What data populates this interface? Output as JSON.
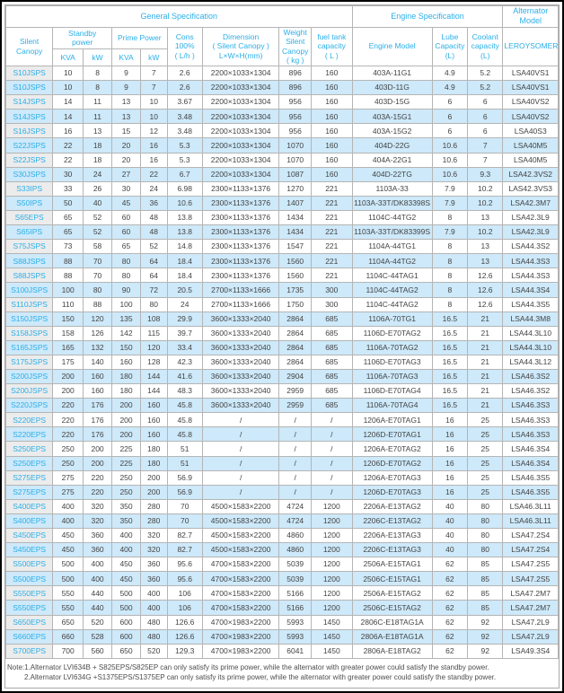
{
  "table": {
    "header": {
      "general_specification": "General Specification",
      "engine_specification": "Engine Specification",
      "alternator_model": "Alternator Model",
      "silent_canopy": "Silent\nCanopy",
      "standby_power": "Standby\npower",
      "prime_power": "Prime Power",
      "kva_1": "KVA",
      "kw_1": "kW",
      "kva_2": "KVA",
      "kw_2": "kW",
      "cons": "Cons\n100%\n( L/h )",
      "dimension": "Dimension\n( Silent Canopy )\nL×W×H(mm)",
      "weight": "Weight\nSilent\nCanopy\n( kg )",
      "fuel_tank": "fuel tank\ncapacity\n( L )",
      "engine_model": "Engine Model",
      "lube_capacity": "Lube\nCapacity\n(L)",
      "coolant_capacity": "Coolant\ncapacity\n(L)",
      "leroysomer": "LEROYSOMER"
    },
    "column_keys": [
      "model",
      "standby-kva",
      "standby-kw",
      "prime-kva",
      "prime-kw",
      "cons",
      "dimension",
      "weight",
      "fuel-tank",
      "engine-model",
      "lube-capacity",
      "coolant-capacity",
      "alternator"
    ],
    "rows": [
      [
        "S10JSPS",
        "10",
        "8",
        "9",
        "7",
        "2.6",
        "2200×1033×1304",
        "896",
        "160",
        "403A-11G1",
        "4.9",
        "5.2",
        "LSA40VS1"
      ],
      [
        "S10JSPS",
        "10",
        "8",
        "9",
        "7",
        "2.6",
        "2200×1033×1304",
        "896",
        "160",
        "403D-11G",
        "4.9",
        "5.2",
        "LSA40VS1"
      ],
      [
        "S14JSPS",
        "14",
        "11",
        "13",
        "10",
        "3.67",
        "2200×1033×1304",
        "956",
        "160",
        "403D-15G",
        "6",
        "6",
        "LSA40VS2"
      ],
      [
        "S14JSPS",
        "14",
        "11",
        "13",
        "10",
        "3.48",
        "2200×1033×1304",
        "956",
        "160",
        "403A-15G1",
        "6",
        "6",
        "LSA40VS2"
      ],
      [
        "S16JSPS",
        "16",
        "13",
        "15",
        "12",
        "3.48",
        "2200×1033×1304",
        "956",
        "160",
        "403A-15G2",
        "6",
        "6",
        "LSA40S3"
      ],
      [
        "S22JSPS",
        "22",
        "18",
        "20",
        "16",
        "5.3",
        "2200×1033×1304",
        "1070",
        "160",
        "404D-22G",
        "10.6",
        "7",
        "LSA40M5"
      ],
      [
        "S22JSPS",
        "22",
        "18",
        "20",
        "16",
        "5.3",
        "2200×1033×1304",
        "1070",
        "160",
        "404A-22G1",
        "10.6",
        "7",
        "LSA40M5"
      ],
      [
        "S30JSPS",
        "30",
        "24",
        "27",
        "22",
        "6.7",
        "2200×1033×1304",
        "1087",
        "160",
        "404D-22TG",
        "10.6",
        "9.3",
        "LSA42.3VS2"
      ],
      [
        "S33IPS",
        "33",
        "26",
        "30",
        "24",
        "6.98",
        "2300×1133×1376",
        "1270",
        "221",
        "1103A-33",
        "7.9",
        "10.2",
        "LAS42.3VS3"
      ],
      [
        "S50IPS",
        "50",
        "40",
        "45",
        "36",
        "10.6",
        "2300×1133×1376",
        "1407",
        "221",
        "1103A-33T/DK83398S",
        "7.9",
        "10.2",
        "LSA42.3M7"
      ],
      [
        "S65EPS",
        "65",
        "52",
        "60",
        "48",
        "13.8",
        "2300×1133×1376",
        "1434",
        "221",
        "1104C-44TG2",
        "8",
        "13",
        "LSA42.3L9"
      ],
      [
        "S65IPS",
        "65",
        "52",
        "60",
        "48",
        "13.8",
        "2300×1133×1376",
        "1434",
        "221",
        "1103A-33T/DK83399S",
        "7.9",
        "10.2",
        "LSA42.3L9"
      ],
      [
        "S75JSPS",
        "73",
        "58",
        "65",
        "52",
        "14.8",
        "2300×1133×1376",
        "1547",
        "221",
        "1104A-44TG1",
        "8",
        "13",
        "LSA44.3S2"
      ],
      [
        "S88JSPS",
        "88",
        "70",
        "80",
        "64",
        "18.4",
        "2300×1133×1376",
        "1560",
        "221",
        "1104A-44TG2",
        "8",
        "13",
        "LSA44.3S3"
      ],
      [
        "S88JSPS",
        "88",
        "70",
        "80",
        "64",
        "18.4",
        "2300×1133×1376",
        "1560",
        "221",
        "1104C-44TAG1",
        "8",
        "12.6",
        "LSA44.3S3"
      ],
      [
        "S100JSPS",
        "100",
        "80",
        "90",
        "72",
        "20.5",
        "2700×1133×1666",
        "1735",
        "300",
        "1104C-44TAG2",
        "8",
        "12.6",
        "LSA44.3S4"
      ],
      [
        "S110JSPS",
        "110",
        "88",
        "100",
        "80",
        "24",
        "2700×1133×1666",
        "1750",
        "300",
        "1104C-44TAG2",
        "8",
        "12.6",
        "LSA44.3S5"
      ],
      [
        "S150JSPS",
        "150",
        "120",
        "135",
        "108",
        "29.9",
        "3600×1333×2040",
        "2864",
        "685",
        "1106A-70TG1",
        "16.5",
        "21",
        "LSA44.3M8"
      ],
      [
        "S158JSPS",
        "158",
        "126",
        "142",
        "115",
        "39.7",
        "3600×1333×2040",
        "2864",
        "685",
        "1106D-E70TAG2",
        "16.5",
        "21",
        "LSA44.3L10"
      ],
      [
        "S165JSPS",
        "165",
        "132",
        "150",
        "120",
        "33.4",
        "3600×1333×2040",
        "2864",
        "685",
        "1106A-70TAG2",
        "16.5",
        "21",
        "LSA44.3L10"
      ],
      [
        "S175JSPS",
        "175",
        "140",
        "160",
        "128",
        "42.3",
        "3600×1333×2040",
        "2864",
        "685",
        "1106D-E70TAG3",
        "16.5",
        "21",
        "LSA44.3L12"
      ],
      [
        "S200JSPS",
        "200",
        "160",
        "180",
        "144",
        "41.6",
        "3600×1333×2040",
        "2904",
        "685",
        "1106A-70TAG3",
        "16.5",
        "21",
        "LSA46.3S2"
      ],
      [
        "S200JSPS",
        "200",
        "160",
        "180",
        "144",
        "48.3",
        "3600×1333×2040",
        "2959",
        "685",
        "1106D-E70TAG4",
        "16.5",
        "21",
        "LSA46.3S2"
      ],
      [
        "S220JSPS",
        "220",
        "176",
        "200",
        "160",
        "45.8",
        "3600×1333×2040",
        "2959",
        "685",
        "1106A-70TAG4",
        "16.5",
        "21",
        "LSA46.3S3"
      ],
      [
        "S220EPS",
        "220",
        "176",
        "200",
        "160",
        "45.8",
        "/",
        "/",
        "/",
        "1206A-E70TAG1",
        "16",
        "25",
        "LSA46.3S3"
      ],
      [
        "S220EPS",
        "220",
        "176",
        "200",
        "160",
        "45.8",
        "/",
        "/",
        "/",
        "1206D-E70TAG1",
        "16",
        "25",
        "LSA46.3S3"
      ],
      [
        "S250EPS",
        "250",
        "200",
        "225",
        "180",
        "51",
        "/",
        "/",
        "/",
        "1206A-E70TAG2",
        "16",
        "25",
        "LSA46.3S4"
      ],
      [
        "S250EPS",
        "250",
        "200",
        "225",
        "180",
        "51",
        "/",
        "/",
        "/",
        "1206D-E70TAG2",
        "16",
        "25",
        "LSA46.3S4"
      ],
      [
        "S275EPS",
        "275",
        "220",
        "250",
        "200",
        "56.9",
        "/",
        "/",
        "/",
        "1206A-E70TAG3",
        "16",
        "25",
        "LSA46.3S5"
      ],
      [
        "S275EPS",
        "275",
        "220",
        "250",
        "200",
        "56.9",
        "/",
        "/",
        "/",
        "1206D-E70TAG3",
        "16",
        "25",
        "LSA46.3S5"
      ],
      [
        "S400EPS",
        "400",
        "320",
        "350",
        "280",
        "70",
        "4500×1583×2200",
        "4724",
        "1200",
        "2206A-E13TAG2",
        "40",
        "80",
        "LSA46.3L11"
      ],
      [
        "S400EPS",
        "400",
        "320",
        "350",
        "280",
        "70",
        "4500×1583×2200",
        "4724",
        "1200",
        "2206C-E13TAG2",
        "40",
        "80",
        "LSA46.3L11"
      ],
      [
        "S450EPS",
        "450",
        "360",
        "400",
        "320",
        "82.7",
        "4500×1583×2200",
        "4860",
        "1200",
        "2206A-E13TAG3",
        "40",
        "80",
        "LSA47.2S4"
      ],
      [
        "S450EPS",
        "450",
        "360",
        "400",
        "320",
        "82.7",
        "4500×1583×2200",
        "4860",
        "1200",
        "2206C-E13TAG3",
        "40",
        "80",
        "LSA47.2S4"
      ],
      [
        "S500EPS",
        "500",
        "400",
        "450",
        "360",
        "95.6",
        "4700×1583×2200",
        "5039",
        "1200",
        "2506A-E15TAG1",
        "62",
        "85",
        "LSA47.2S5"
      ],
      [
        "S500EPS",
        "500",
        "400",
        "450",
        "360",
        "95.6",
        "4700×1583×2200",
        "5039",
        "1200",
        "2506C-E15TAG1",
        "62",
        "85",
        "LSA47.2S5"
      ],
      [
        "S550EPS",
        "550",
        "440",
        "500",
        "400",
        "106",
        "4700×1583×2200",
        "5166",
        "1200",
        "2506A-E15TAG2",
        "62",
        "85",
        "LSA47.2M7"
      ],
      [
        "S550EPS",
        "550",
        "440",
        "500",
        "400",
        "106",
        "4700×1583×2200",
        "5166",
        "1200",
        "2506C-E15TAG2",
        "62",
        "85",
        "LSA47.2M7"
      ],
      [
        "S650EPS",
        "650",
        "520",
        "600",
        "480",
        "126.6",
        "4700×1983×2200",
        "5993",
        "1450",
        "2806C-E18TAG1A",
        "62",
        "92",
        "LSA47.2L9"
      ],
      [
        "S660EPS",
        "660",
        "528",
        "600",
        "480",
        "126.6",
        "4700×1983×2200",
        "5993",
        "1450",
        "2806A-E18TAG1A",
        "62",
        "92",
        "LSA47.2L9"
      ],
      [
        "S700EPS",
        "700",
        "560",
        "650",
        "520",
        "129.3",
        "4700×1983×2200",
        "6041",
        "1450",
        "2806A-E18TAG2",
        "62",
        "92",
        "LSA49.3S4"
      ]
    ]
  },
  "notes": [
    "Note:1.Alternator LVI634B + S825EPS/S825EP can only satisfy its prime power, while the alternator with greater power could satisfy the standby power.",
    "2.Alternator LVI634G +S1375EPS/S1375EP can only satisfy its prime power, while the alternator with greater power could satisfy the standby power."
  ],
  "colors": {
    "accent_cyan": "#2bafe8",
    "alt_row_blue": "#cde9fa",
    "first_col_gray": "#ececec",
    "grid_line": "#b5b5b5",
    "data_text": "#444444"
  }
}
